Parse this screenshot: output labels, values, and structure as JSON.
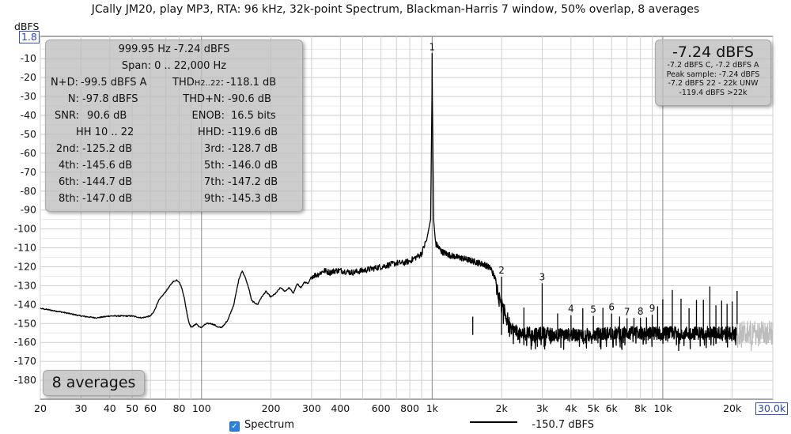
{
  "title": "JCally JM20, play MP3, RTA: 96 kHz, 32k-point Spectrum, Blackman-Harris 7 window, 50% overlap, 8 averages",
  "y_unit_label": "dBFS",
  "y_top_box": "1.8",
  "x_right_box": "30.0k",
  "stats": {
    "row1": "999.95 Hz  -7.24 dBFS",
    "row2": "Span: 0 .. 22,000 Hz",
    "nd_label": "N+D:",
    "nd_value": "-99.5 dBFS A",
    "thd_label": "THD",
    "thd_sub": "H2..22",
    "thd_colon": ":",
    "thd_value": "-118.1 dB",
    "n_label": "N:",
    "n_value": "-97.8 dBFS",
    "thdn_label": "THD+N:",
    "thdn_value": "-90.6 dB",
    "snr_label": "SNR:",
    "snr_value": "90.6 dB",
    "enob_label": "ENOB:",
    "enob_value": "16.5 bits",
    "hh_label": "HH 10 .. 22",
    "hhd_label": "HHD:",
    "hhd_value": "-119.6 dB",
    "h2_label": "2nd:",
    "h2_value": "-125.2 dB",
    "h3_label": "3rd:",
    "h3_value": "-128.7 dB",
    "h4_label": "4th:",
    "h4_value": "-145.6 dB",
    "h5_label": "5th:",
    "h5_value": "-146.0 dB",
    "h6_label": "6th:",
    "h6_value": "-144.7 dB",
    "h7_label": "7th:",
    "h7_value": "-147.2 dB",
    "h8_label": "8th:",
    "h8_value": "-147.0 dB",
    "h9_label": "9th:",
    "h9_value": "-145.3 dB"
  },
  "level": {
    "big": "-7.24 dBFS",
    "l1": "-7.2 dBFS C, -7.2 dBFS A",
    "l2": "Peak sample: -7.24 dBFS",
    "l3": "-7.2 dBFS 22 - 22k UNW",
    "l4": "-119.4 dBFS >22k"
  },
  "averages": "8 averages",
  "legend": {
    "series_label": "Spectrum",
    "value": "-150.7 dBFS",
    "checked": true
  },
  "colors": {
    "trace": "#000000",
    "trace_above_22k": "#bdbdbd",
    "grid": "#cfcfcf",
    "decade_grid": "#8a8a8a",
    "box_border": "#3050d0"
  },
  "chart_data": {
    "type": "line",
    "x_scale": "log",
    "xlim": [
      20,
      30000
    ],
    "ylim": [
      -190,
      1.8
    ],
    "xlabel": "",
    "ylabel": "dBFS",
    "x_ticks": [
      20,
      30,
      40,
      50,
      60,
      80,
      100,
      200,
      300,
      400,
      600,
      800,
      1000,
      2000,
      3000,
      4000,
      5000,
      6000,
      8000,
      10000,
      20000
    ],
    "x_tick_labels": [
      "20",
      "30",
      "40",
      "50",
      "60",
      "80",
      "100",
      "200",
      "300",
      "400",
      "600",
      "800",
      "1k",
      "2k",
      "3k",
      "4k",
      "5k",
      "6k",
      "8k",
      "10k",
      "20k"
    ],
    "y_ticks": [
      -10,
      -20,
      -30,
      -40,
      -50,
      -60,
      -70,
      -80,
      -90,
      -100,
      -110,
      -120,
      -130,
      -140,
      -150,
      -160,
      -170,
      -180
    ],
    "y_tick_labels": [
      "-10",
      "-20",
      "-30",
      "-40",
      "-50",
      "-60",
      "-70",
      "-80",
      "-90",
      "-100",
      "-110",
      "-120",
      "-130",
      "-140",
      "-150",
      "-160",
      "-170",
      "-180"
    ],
    "series": [
      {
        "values_x": [
          20,
          25,
          30,
          35,
          40,
          45,
          50,
          55,
          60,
          62,
          65,
          68,
          70,
          72,
          75,
          78,
          80,
          82,
          84,
          86,
          88,
          90,
          93,
          95,
          98,
          100,
          105,
          110,
          115,
          118,
          122,
          125,
          130,
          135,
          138,
          140,
          145,
          150,
          155,
          160,
          165,
          170,
          175,
          180,
          190,
          200,
          210,
          220,
          230,
          240,
          250,
          260,
          270,
          280,
          290,
          300,
          320,
          340,
          360,
          380,
          400,
          450,
          500,
          550,
          600,
          650,
          700,
          750,
          800,
          850,
          880,
          900,
          930,
          960,
          980,
          990,
          995,
          1000,
          1005,
          1010,
          1020,
          1040,
          1070,
          1100,
          1200,
          1300,
          1400,
          1500,
          1600,
          1700,
          1800,
          1900,
          2000,
          2200,
          2400,
          2600,
          2800,
          3000,
          3500,
          4000,
          5000,
          6000,
          7000,
          8000,
          10000,
          12000,
          15000,
          18000,
          21000
        ],
        "values": [
          -142,
          -144,
          -146,
          -147,
          -146,
          -146,
          -146,
          -147,
          -146,
          -144,
          -138,
          -135,
          -133,
          -131,
          -128,
          -127,
          -128,
          -131,
          -136,
          -143,
          -149,
          -152,
          -151,
          -150,
          -152,
          -152,
          -150,
          -150,
          -151,
          -152,
          -152,
          -151,
          -148,
          -143,
          -140,
          -136,
          -127,
          -122,
          -126,
          -131,
          -138,
          -139,
          -140,
          -137,
          -133,
          -136,
          -134,
          -131,
          -133,
          -131,
          -134,
          -129,
          -131,
          -128,
          -129,
          -125,
          -124,
          -122,
          -123,
          -122,
          -122,
          -123,
          -122,
          -121,
          -120,
          -119,
          -118,
          -118,
          -117,
          -115,
          -114,
          -113,
          -108,
          -104,
          -99,
          -80,
          -40,
          -7.24,
          -40,
          -80,
          -103,
          -108,
          -110,
          -112,
          -114,
          -115,
          -116,
          -117,
          -118,
          -119,
          -121,
          -128,
          -140,
          -152,
          -156,
          -155,
          -156,
          -155,
          -156,
          -156,
          -156,
          -155,
          -155,
          -155,
          -155,
          -155,
          -155,
          -155,
          -155
        ]
      }
    ],
    "harmonics": [
      {
        "label": "1",
        "freq": 1000,
        "level": -7.24
      },
      {
        "label": "2",
        "freq": 2000,
        "level": -125.2
      },
      {
        "label": "3",
        "freq": 3000,
        "level": -128.7
      },
      {
        "label": "4",
        "freq": 4000,
        "level": -145.6
      },
      {
        "label": "5",
        "freq": 5000,
        "level": -146.0
      },
      {
        "label": "6",
        "freq": 6000,
        "level": -144.7
      },
      {
        "label": "7",
        "freq": 7000,
        "level": -147.2
      },
      {
        "label": "8",
        "freq": 8000,
        "level": -147.0
      },
      {
        "label": "9",
        "freq": 9000,
        "level": -145.3
      }
    ],
    "grid": true,
    "legend": "bottom"
  }
}
